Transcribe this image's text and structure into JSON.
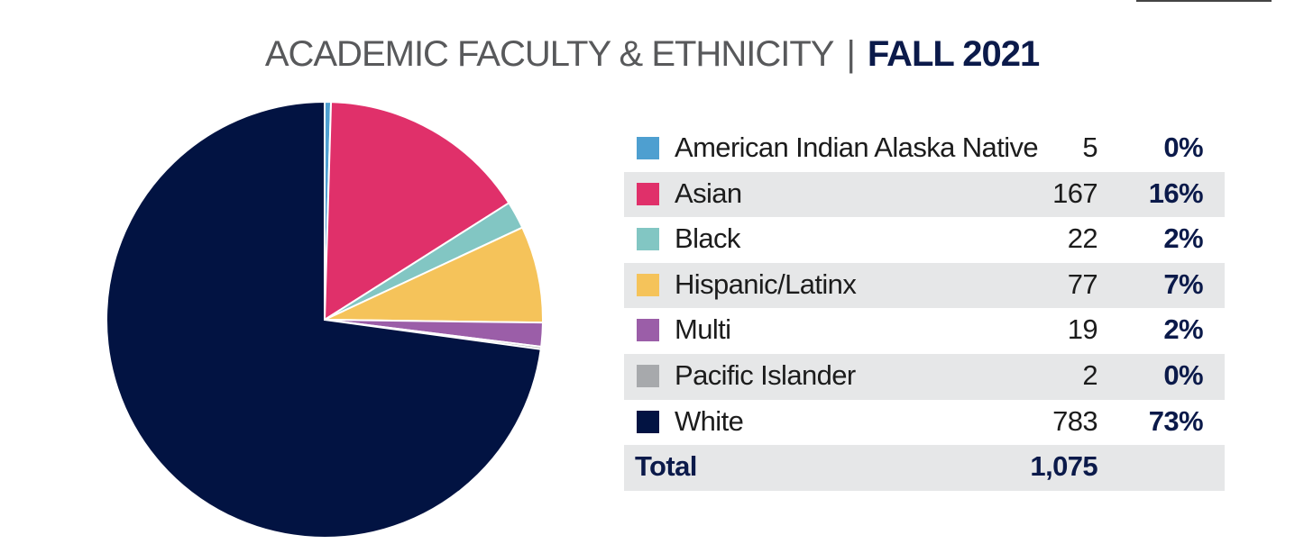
{
  "title": {
    "main": "ACADEMIC FACULTY & ETHNICITY",
    "separator": "|",
    "year": "FALL 2021"
  },
  "chart_data": {
    "type": "pie",
    "title": "ACADEMIC FACULTY & ETHNICITY | FALL 2021",
    "series": [
      {
        "name": "American Indian Alaska Native",
        "value": 5,
        "percent": "0%",
        "color": "#4e9fd0"
      },
      {
        "name": "Asian",
        "value": 167,
        "percent": "16%",
        "color": "#e0306a"
      },
      {
        "name": "Black",
        "value": 22,
        "percent": "2%",
        "color": "#82c6c3"
      },
      {
        "name": "Hispanic/Latinx",
        "value": 77,
        "percent": "7%",
        "color": "#f5c35a"
      },
      {
        "name": "Multi",
        "value": 19,
        "percent": "2%",
        "color": "#9b5ea8"
      },
      {
        "name": "Pacific Islander",
        "value": 2,
        "percent": "0%",
        "color": "#a7a9ac"
      },
      {
        "name": "White",
        "value": 783,
        "percent": "73%",
        "color": "#021342"
      }
    ],
    "total_label": "Total",
    "total": "1,075"
  }
}
